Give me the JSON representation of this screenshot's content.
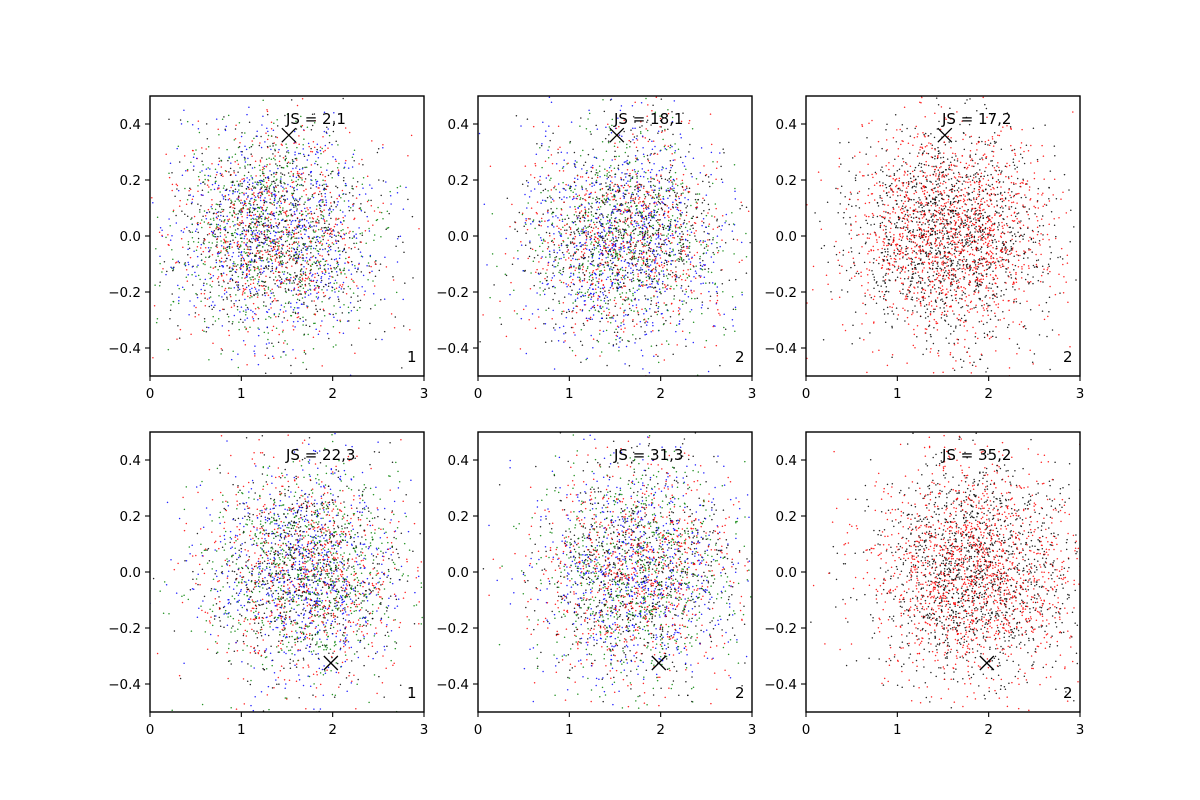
{
  "chart_data": [
    {
      "type": "scatter",
      "xlim": [
        0,
        3
      ],
      "ylim": [
        -0.5,
        0.5
      ],
      "xticks": [
        "0",
        "1",
        "2",
        "3"
      ],
      "yticks": [
        "0.4",
        "0.2",
        "0.0",
        "−0.2",
        "−0.4"
      ],
      "annotation": "JS = 2,1",
      "corner_label": "1",
      "marker": {
        "x": 1.52,
        "y": 0.36,
        "symbol": "x"
      },
      "cloud": {
        "x_center": 1.35,
        "x_spread": 0.55,
        "y_center": 0.0,
        "y_spread": 0.19,
        "n_points": 3000
      },
      "colors": [
        "#0000ff",
        "#008000",
        "#ff0000",
        "#000000"
      ]
    },
    {
      "type": "scatter",
      "xlim": [
        0,
        3
      ],
      "ylim": [
        -0.5,
        0.5
      ],
      "xticks": [
        "0",
        "1",
        "2",
        "3"
      ],
      "yticks": [
        "0.4",
        "0.2",
        "0.0",
        "−0.2",
        "−0.4"
      ],
      "annotation": "JS = 18,1",
      "corner_label": "2",
      "marker": {
        "x": 1.52,
        "y": 0.36,
        "symbol": "x"
      },
      "cloud": {
        "x_center": 1.6,
        "x_spread": 0.55,
        "y_center": 0.0,
        "y_spread": 0.19,
        "n_points": 3000
      },
      "colors": [
        "#0000ff",
        "#008000",
        "#ff0000",
        "#000000"
      ]
    },
    {
      "type": "scatter",
      "xlim": [
        0,
        3
      ],
      "ylim": [
        -0.5,
        0.5
      ],
      "xticks": [
        "0",
        "1",
        "2",
        "3"
      ],
      "yticks": [
        "0.4",
        "0.2",
        "0.0",
        "−0.2",
        "−0.4"
      ],
      "annotation": "JS = 17,2",
      "corner_label": "2",
      "marker": {
        "x": 1.52,
        "y": 0.36,
        "symbol": "x"
      },
      "cloud": {
        "x_center": 1.6,
        "x_spread": 0.55,
        "y_center": 0.0,
        "y_spread": 0.19,
        "n_points": 3000
      },
      "colors": [
        "#ff0000",
        "#000000"
      ]
    },
    {
      "type": "scatter",
      "xlim": [
        0,
        3
      ],
      "ylim": [
        -0.5,
        0.5
      ],
      "xticks": [
        "0",
        "1",
        "2",
        "3"
      ],
      "yticks": [
        "0.4",
        "0.2",
        "0.0",
        "−0.2",
        "−0.4"
      ],
      "annotation": "JS = 22,3",
      "corner_label": "1",
      "marker": {
        "x": 1.98,
        "y": -0.325,
        "symbol": "x"
      },
      "cloud": {
        "x_center": 1.7,
        "x_spread": 0.55,
        "y_center": 0.0,
        "y_spread": 0.19,
        "n_points": 3000
      },
      "colors": [
        "#0000ff",
        "#008000",
        "#ff0000",
        "#000000"
      ]
    },
    {
      "type": "scatter",
      "xlim": [
        0,
        3
      ],
      "ylim": [
        -0.5,
        0.5
      ],
      "xticks": [
        "0",
        "1",
        "2",
        "3"
      ],
      "yticks": [
        "0.4",
        "0.2",
        "0.0",
        "−0.2",
        "−0.4"
      ],
      "annotation": "JS = 31,3",
      "corner_label": "2",
      "marker": {
        "x": 1.98,
        "y": -0.325,
        "symbol": "x"
      },
      "cloud": {
        "x_center": 1.75,
        "x_spread": 0.55,
        "y_center": 0.0,
        "y_spread": 0.19,
        "n_points": 3000
      },
      "colors": [
        "#0000ff",
        "#008000",
        "#ff0000",
        "#000000"
      ]
    },
    {
      "type": "scatter",
      "xlim": [
        0,
        3
      ],
      "ylim": [
        -0.5,
        0.5
      ],
      "xticks": [
        "0",
        "1",
        "2",
        "3"
      ],
      "yticks": [
        "0.4",
        "0.2",
        "0.0",
        "−0.2",
        "−0.4"
      ],
      "annotation": "JS = 35,2",
      "corner_label": "2",
      "marker": {
        "x": 1.98,
        "y": -0.325,
        "symbol": "x"
      },
      "cloud": {
        "x_center": 1.85,
        "x_spread": 0.55,
        "y_center": 0.0,
        "y_spread": 0.19,
        "n_points": 3000
      },
      "colors": [
        "#ff0000",
        "#000000"
      ]
    }
  ]
}
